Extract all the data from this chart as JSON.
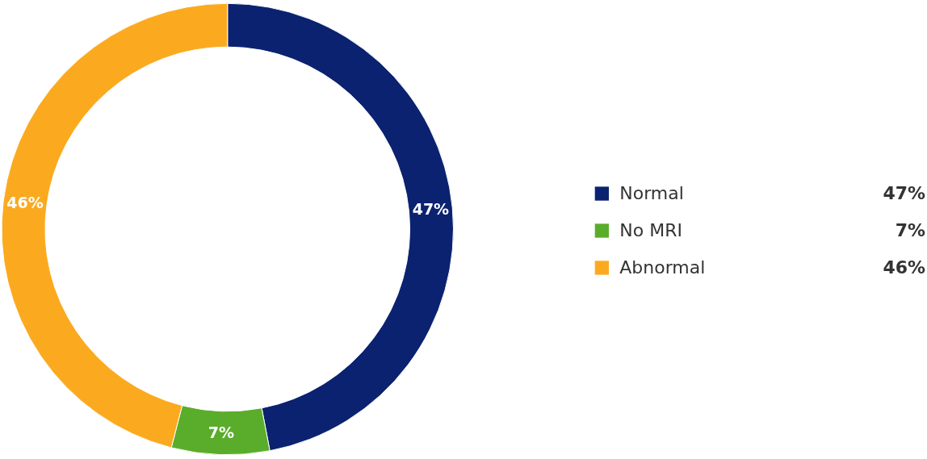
{
  "chart_data": {
    "type": "donut",
    "categories": [
      "Normal",
      "No MRI",
      "Abnormal"
    ],
    "values": [
      47,
      7,
      46
    ],
    "colors": [
      "#0b2270",
      "#5aad2a",
      "#fbaa1f"
    ],
    "value_labels": [
      "47%",
      "7%",
      "46%"
    ],
    "legend": "right"
  }
}
